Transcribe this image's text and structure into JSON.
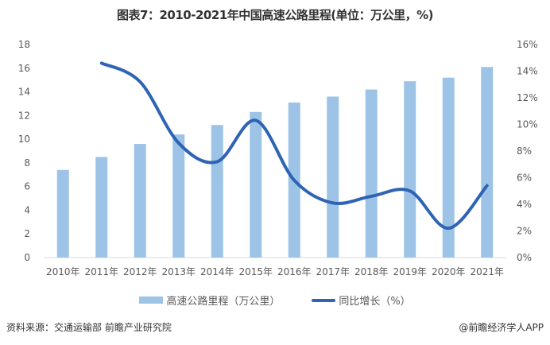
{
  "title": "图表7：2010-2021年中国高速公路里程(单位：万公里，%)",
  "source": "资料来源：交通运输部 前瞻产业研究院",
  "credit": "@前瞻经济学人APP",
  "colors": {
    "bar": "#9dc3e6",
    "line": "#2e64b3"
  },
  "chart_data": {
    "type": "bar+line",
    "categories": [
      "2010年",
      "2011年",
      "2012年",
      "2013年",
      "2014年",
      "2015年",
      "2016年",
      "2017年",
      "2018年",
      "2019年",
      "2020年",
      "2021年"
    ],
    "series": [
      {
        "name": "高速公路里程（万公里）",
        "type": "bar",
        "axis": "left",
        "values": [
          7.4,
          8.5,
          9.6,
          10.4,
          11.2,
          12.3,
          13.1,
          13.6,
          14.2,
          14.9,
          15.2,
          16.1
        ]
      },
      {
        "name": "同比增长（%）",
        "type": "line",
        "axis": "right",
        "values": [
          null,
          14.6,
          13.2,
          8.6,
          7.2,
          10.3,
          5.8,
          4.1,
          4.6,
          5.0,
          2.2,
          5.4
        ]
      }
    ],
    "left_axis": {
      "range": [
        0,
        18
      ],
      "ticks": [
        "0",
        "2",
        "4",
        "6",
        "8",
        "10",
        "12",
        "14",
        "16",
        "18"
      ]
    },
    "right_axis": {
      "range": [
        0,
        16
      ],
      "ticks": [
        "0%",
        "2%",
        "4%",
        "6%",
        "8%",
        "10%",
        "12%",
        "14%",
        "16%"
      ]
    },
    "grid": false,
    "legend": "bottom"
  }
}
